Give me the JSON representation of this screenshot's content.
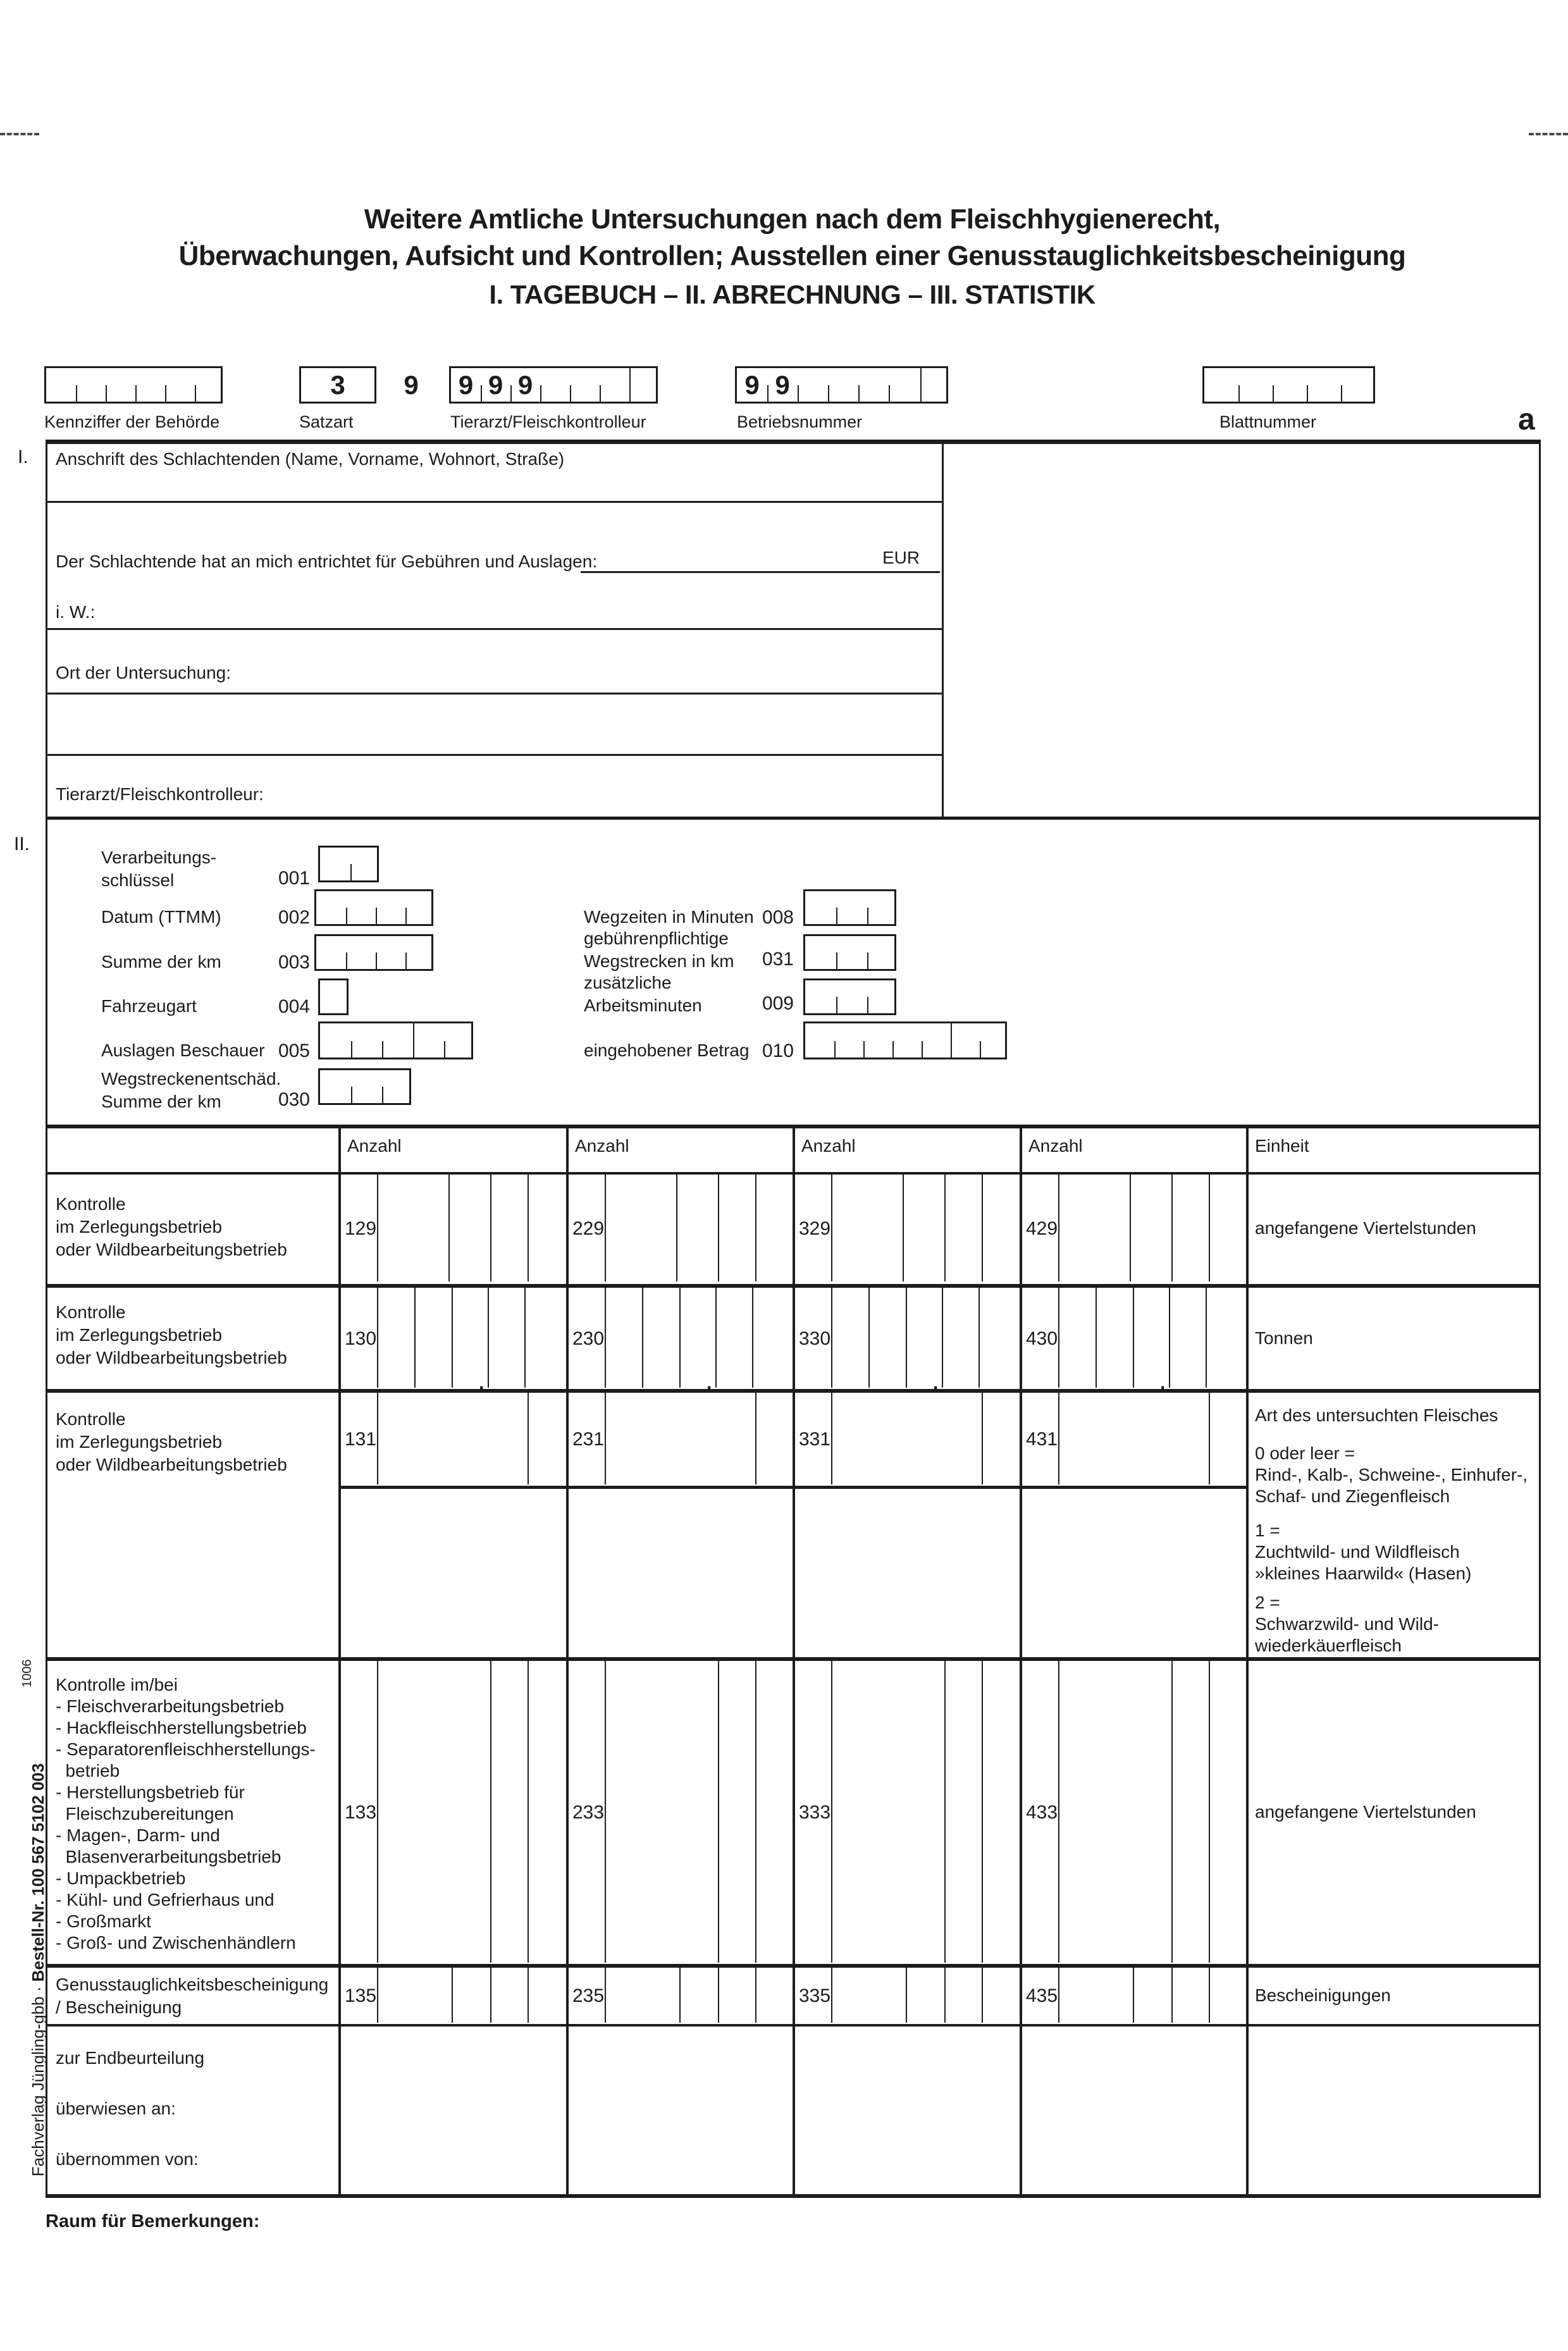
{
  "corner_letter": "a",
  "title": {
    "line1": "Weitere Amtliche Untersuchungen nach dem Fleischhygienerecht,",
    "line2": "Überwachungen, Aufsicht und Kontrollen; Ausstellen einer Genusstauglichkeitsbescheinigung",
    "line3": "I. TAGEBUCH – II. ABRECHNUNG – III. STATISTIK"
  },
  "header_fields": [
    {
      "label": "Kennziffer der Behörde",
      "value": ""
    },
    {
      "label": "Satzart",
      "value": "39"
    },
    {
      "label": "Tierarzt/Fleischkontrolleur",
      "value": "999"
    },
    {
      "label": "Betriebsnummer",
      "value": "99"
    },
    {
      "label": "Blattnummer",
      "value": ""
    }
  ],
  "section1": {
    "index": "I.",
    "anschrift_label": "Anschrift des Schlachtenden (Name, Vorname, Wohnort, Straße)",
    "gebuehren_label": "Der Schlachtende hat an mich entrichtet für Gebühren und Auslagen:",
    "currency_label": "EUR",
    "in_words_label": "i. W.:",
    "ort_label": "Ort der Untersuchung:",
    "tierarzt_label": "Tierarzt/Fleischkontrolleur:"
  },
  "section2": {
    "index": "II.",
    "left_fields": [
      {
        "lines": [
          "Verarbeitungs-",
          "schlüssel"
        ],
        "code": "001"
      },
      {
        "lines": [
          "Datum (TTMM)"
        ],
        "code": "002"
      },
      {
        "lines": [
          "Summe der km"
        ],
        "code": "003"
      },
      {
        "lines": [
          "Fahrzeugart"
        ],
        "code": "004"
      },
      {
        "lines": [
          "Auslagen Beschauer"
        ],
        "code": "005"
      },
      {
        "lines": [
          "Wegstreckenentschäd.",
          "Summe der km"
        ],
        "code": "030"
      }
    ],
    "right_fields": [
      {
        "lines": [
          "Wegzeiten in Minuten"
        ],
        "code": "008"
      },
      {
        "lines": [
          "gebührenpflichtige",
          "Wegstrecken in km"
        ],
        "code": "031"
      },
      {
        "lines": [
          "zusätzliche",
          "Arbeitsminuten"
        ],
        "code": "009"
      },
      {
        "lines": [
          "eingehobener Betrag"
        ],
        "code": "010"
      }
    ]
  },
  "table": {
    "col_headers": [
      "Anzahl",
      "Anzahl",
      "Anzahl",
      "Anzahl",
      "Einheit"
    ],
    "rows": [
      {
        "label_lines": [
          "Kontrolle",
          "im Zerlegungsbetrieb",
          "oder Wildbearbeitungsbetrieb"
        ],
        "codes": [
          "129",
          "229",
          "329",
          "429"
        ],
        "einheit_lines": [
          "angefangene Viertelstunden"
        ]
      },
      {
        "label_lines": [
          "Kontrolle",
          "im Zerlegungsbetrieb",
          "oder Wildbearbeitungsbetrieb"
        ],
        "codes": [
          "130",
          "230",
          "330",
          "430"
        ],
        "einheit_lines": [
          "Tonnen"
        ]
      },
      {
        "label_lines": [
          "Kontrolle",
          "im Zerlegungsbetrieb",
          "oder Wildbearbeitungsbetrieb"
        ],
        "codes": [
          "131",
          "231",
          "331",
          "431"
        ],
        "einheit_blocks": [
          [
            "Art des untersuchten Fleisches"
          ],
          [
            "0 oder leer =",
            "Rind-, Kalb-, Schweine-, Einhufer-,",
            "Schaf- und Ziegenfleisch"
          ],
          [
            "1 =",
            "Zuchtwild- und Wildfleisch",
            "»kleines Haarwild« (Hasen)"
          ],
          [
            "2 =",
            "Schwarzwild- und Wild-",
            "wiederkäuerfleisch"
          ]
        ]
      },
      {
        "label_lines": [
          "Kontrolle im/bei",
          "- Fleischverarbeitungsbetrieb",
          "- Hackfleischherstellungsbetrieb",
          "- Separatorenfleischherstellungs-",
          "  betrieb",
          "- Herstellungsbetrieb für",
          "  Fleischzubereitungen",
          "- Magen-, Darm- und",
          "  Blasenverarbeitungsbetrieb",
          "- Umpackbetrieb",
          "- Kühl- und Gefrierhaus und",
          "- Großmarkt",
          "- Groß- und Zwischenhändlern"
        ],
        "codes": [
          "133",
          "233",
          "333",
          "433"
        ],
        "einheit_lines": [
          "angefangene Viertelstunden"
        ]
      },
      {
        "label_lines": [
          "Genusstauglichkeitsbescheinigung",
          "/ Bescheinigung"
        ],
        "codes": [
          "135",
          "235",
          "335",
          "435"
        ],
        "einheit_lines": [
          "Bescheinigungen"
        ]
      },
      {
        "label_lines": [
          "zur Endbeurteilung",
          "überwiesen an:",
          "übernommen von:"
        ],
        "codes": [],
        "einheit_lines": []
      }
    ]
  },
  "footer": {
    "bemerkungen_label": "Raum für Bemerkungen:",
    "publisher_normal": "Fachverlag Jüngling-gbb",
    "publisher_sep": " · ",
    "publisher_bold": "Bestell-Nr. 100 567 5102 003",
    "side_code": "1006"
  }
}
